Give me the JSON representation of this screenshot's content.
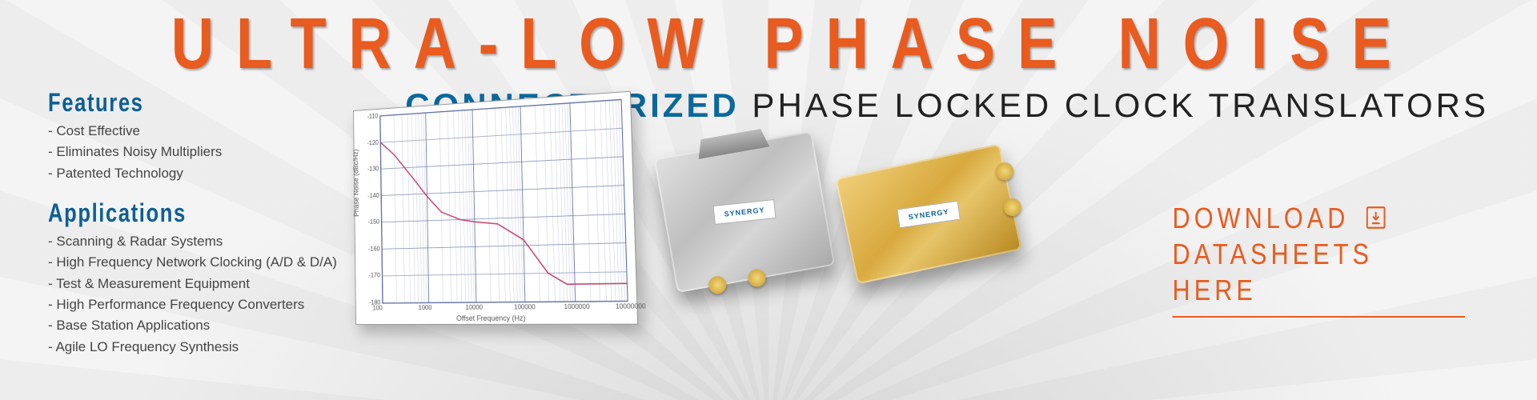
{
  "headline": "ULTRA-LOW PHASE NOISE",
  "subhead": {
    "accent": "CONNECTORIZED",
    "rest": " PHASE LOCKED CLOCK TRANSLATORS"
  },
  "features": {
    "title": "Features",
    "items": [
      "Cost Effective",
      "Eliminates Noisy Multipliers",
      "Patented Technology"
    ]
  },
  "applications": {
    "title": "Applications",
    "items": [
      "Scanning & Radar Systems",
      "High Frequency Network Clocking  (A/D & D/A)",
      "Test & Measurement Equipment",
      "High Performance Frequency Converters",
      "Base Station Applications",
      "Agile LO Frequency Synthesis"
    ]
  },
  "chart": {
    "type": "line",
    "xlabel": "Offset Frequency (Hz)",
    "ylabel": "Phase Noise (dBc/Hz)",
    "xscale": "log",
    "xlim": [
      100,
      10000000
    ],
    "xticks": [
      100,
      1000,
      10000,
      100000,
      1000000,
      10000000
    ],
    "ylim": [
      -180,
      -110
    ],
    "yticks": [
      -110,
      -120,
      -130,
      -140,
      -150,
      -160,
      -170,
      -180
    ],
    "series": {
      "color": "#c4426e",
      "line_width": 1.5,
      "points": [
        [
          100,
          -120
        ],
        [
          200,
          -125
        ],
        [
          500,
          -134
        ],
        [
          1000,
          -141
        ],
        [
          2000,
          -147
        ],
        [
          5000,
          -150
        ],
        [
          10000,
          -151
        ],
        [
          30000,
          -152
        ],
        [
          100000,
          -158
        ],
        [
          300000,
          -170
        ],
        [
          700000,
          -174
        ],
        [
          1000000,
          -174
        ],
        [
          3000000,
          -174
        ],
        [
          10000000,
          -174
        ]
      ]
    },
    "grid_color": "#5a6aa0",
    "background_color": "#ffffff"
  },
  "modules": {
    "m1_label": "SYNERGY",
    "m2_label": "SYNERGY"
  },
  "cta": {
    "line1": "DOWNLOAD",
    "line2": "DATASHEETS HERE"
  },
  "colors": {
    "orange": "#e95b1e",
    "blue": "#0d5f95",
    "text": "#444444"
  }
}
